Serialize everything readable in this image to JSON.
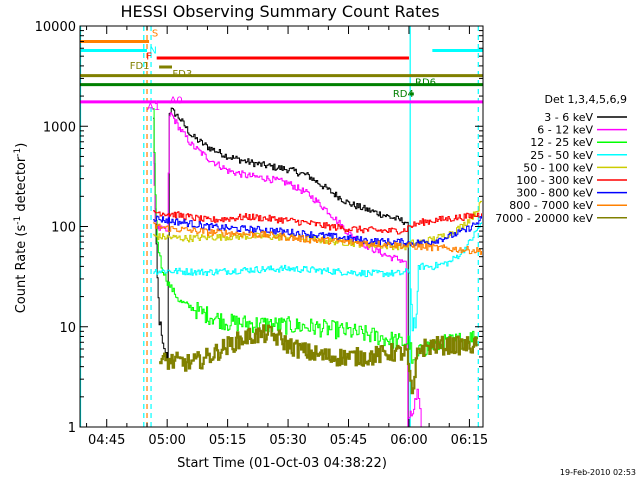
{
  "chart_data": {
    "type": "line",
    "title": "HESSI Observing Summary Count Rates",
    "xlabel": "Start Time (01-Oct-03 04:38:22)",
    "ylabel_main": "Count Rate (s",
    "ylabel_sup1": "-1",
    "ylabel_mid": " detector",
    "ylabel_sup2": "-1",
    "ylabel_end": ")",
    "footer": "19-Feb-2010 02:53",
    "y_scale": "log",
    "ylim": [
      1,
      10000
    ],
    "xlim_minutes": [
      38.37,
      138.37
    ],
    "x_ticks": [
      {
        "label": "04:45",
        "m": 45
      },
      {
        "label": "05:00",
        "m": 60
      },
      {
        "label": "05:15",
        "m": 75
      },
      {
        "label": "05:30",
        "m": 90
      },
      {
        "label": "05:45",
        "m": 105
      },
      {
        "label": "06:00",
        "m": 120
      },
      {
        "label": "06:15",
        "m": 135
      }
    ],
    "y_ticks": [
      {
        "label": "1",
        "v": 1
      },
      {
        "label": "10",
        "v": 10
      },
      {
        "label": "100",
        "v": 100
      },
      {
        "label": "1000",
        "v": 1000
      },
      {
        "label": "10000",
        "v": 10000
      }
    ],
    "legend_title": "Det 1,3,4,5,6,9",
    "series": [
      {
        "name": "3 - 6 keV",
        "color": "#000000",
        "points": [
          [
            56.5,
            1200
          ],
          [
            57,
            150
          ],
          [
            57.5,
            30
          ],
          [
            58,
            12
          ],
          [
            58.8,
            6
          ],
          [
            59.5,
            5
          ],
          [
            60,
            4.8
          ],
          [
            60.5,
            1400
          ],
          [
            61,
            1450
          ],
          [
            63,
            1200
          ],
          [
            66,
            800
          ],
          [
            70,
            620
          ],
          [
            75,
            500
          ],
          [
            80,
            440
          ],
          [
            85,
            400
          ],
          [
            90,
            370
          ],
          [
            95,
            320
          ],
          [
            100,
            230
          ],
          [
            105,
            170
          ],
          [
            110,
            145
          ],
          [
            115,
            125
          ],
          [
            119.5,
            110
          ],
          [
            119.8,
            1
          ]
        ]
      },
      {
        "name": "6 - 12 keV",
        "color": "#ff00ff",
        "points": [
          [
            56.5,
            550
          ],
          [
            57,
            120
          ],
          [
            57.5,
            100
          ],
          [
            58,
            95
          ],
          [
            59,
            92
          ],
          [
            60,
            90
          ],
          [
            60.5,
            1300
          ],
          [
            61,
            1300
          ],
          [
            63,
            950
          ],
          [
            66,
            650
          ],
          [
            70,
            480
          ],
          [
            75,
            360
          ],
          [
            80,
            320
          ],
          [
            85,
            300
          ],
          [
            90,
            270
          ],
          [
            95,
            210
          ],
          [
            100,
            140
          ],
          [
            105,
            85
          ],
          [
            110,
            62
          ],
          [
            115,
            50
          ],
          [
            119,
            45
          ],
          [
            119.7,
            1
          ],
          [
            122,
            2
          ],
          [
            123,
            1
          ]
        ]
      },
      {
        "name": "12 - 25 keV",
        "color": "#00ff00",
        "points": [
          [
            56.5,
            1500
          ],
          [
            57,
            200
          ],
          [
            57.5,
            70
          ],
          [
            58.5,
            40
          ],
          [
            60,
            28
          ],
          [
            63,
            18
          ],
          [
            68,
            14
          ],
          [
            75,
            11
          ],
          [
            85,
            10.5
          ],
          [
            95,
            10
          ],
          [
            105,
            9
          ],
          [
            112,
            8
          ],
          [
            118,
            7
          ],
          [
            120,
            7
          ],
          [
            121,
            4
          ],
          [
            123,
            6
          ],
          [
            126,
            6.5
          ],
          [
            130,
            7
          ],
          [
            134,
            7.5
          ],
          [
            137,
            8
          ]
        ]
      },
      {
        "name": "25 - 50 keV",
        "color": "#00ffff",
        "points": [
          [
            56.5,
            36
          ],
          [
            60,
            36
          ],
          [
            70,
            35
          ],
          [
            80,
            37
          ],
          [
            90,
            38
          ],
          [
            100,
            36
          ],
          [
            110,
            34
          ],
          [
            118,
            34
          ],
          [
            120,
            36
          ],
          [
            120.8,
            11
          ],
          [
            121.8,
            11
          ],
          [
            122.3,
            40
          ],
          [
            126,
            40
          ],
          [
            130,
            44
          ],
          [
            133,
            55
          ],
          [
            135,
            70
          ],
          [
            137,
            95
          ],
          [
            138,
            110
          ]
        ]
      },
      {
        "name": "50 - 100 keV",
        "color": "#cccc00",
        "points": [
          [
            56.5,
            80
          ],
          [
            60,
            78
          ],
          [
            65,
            76
          ],
          [
            70,
            78
          ],
          [
            80,
            80
          ],
          [
            90,
            78
          ],
          [
            100,
            72
          ],
          [
            110,
            66
          ],
          [
            115,
            64
          ],
          [
            119,
            63
          ],
          [
            120.5,
            68
          ],
          [
            123,
            70
          ],
          [
            126,
            75
          ],
          [
            130,
            85
          ],
          [
            133,
            100
          ],
          [
            136,
            130
          ],
          [
            138,
            175
          ]
        ]
      },
      {
        "name": "100 - 300 keV",
        "color": "#ff0000",
        "points": [
          [
            56.5,
            140
          ],
          [
            60,
            135
          ],
          [
            65,
            125
          ],
          [
            70,
            115
          ],
          [
            75,
            120
          ],
          [
            80,
            125
          ],
          [
            85,
            120
          ],
          [
            90,
            115
          ],
          [
            95,
            108
          ],
          [
            100,
            100
          ],
          [
            105,
            95
          ],
          [
            110,
            92
          ],
          [
            115,
            90
          ],
          [
            119,
            92
          ],
          [
            120,
            100
          ],
          [
            123,
            110
          ],
          [
            126,
            115
          ],
          [
            130,
            120
          ],
          [
            134,
            125
          ],
          [
            137,
            130
          ],
          [
            138,
            135
          ]
        ]
      },
      {
        "name": "300 - 800 keV",
        "color": "#0000ff",
        "points": [
          [
            56.5,
            122
          ],
          [
            60,
            115
          ],
          [
            65,
            108
          ],
          [
            70,
            100
          ],
          [
            75,
            96
          ],
          [
            80,
            94
          ],
          [
            85,
            92
          ],
          [
            90,
            88
          ],
          [
            95,
            84
          ],
          [
            100,
            80
          ],
          [
            105,
            76
          ],
          [
            110,
            72
          ],
          [
            115,
            70
          ],
          [
            118,
            70
          ],
          [
            120,
            68
          ],
          [
            125,
            70
          ],
          [
            130,
            80
          ],
          [
            134,
            92
          ],
          [
            137,
            110
          ],
          [
            138,
            120
          ]
        ]
      },
      {
        "name": "800 - 7000 keV",
        "color": "#ff8000",
        "points": [
          [
            56.5,
            102
          ],
          [
            60,
            96
          ],
          [
            65,
            92
          ],
          [
            70,
            88
          ],
          [
            75,
            86
          ],
          [
            80,
            84
          ],
          [
            85,
            82
          ],
          [
            90,
            78
          ],
          [
            95,
            74
          ],
          [
            100,
            72
          ],
          [
            105,
            70
          ],
          [
            110,
            68
          ],
          [
            115,
            66
          ],
          [
            120,
            64
          ],
          [
            125,
            62
          ],
          [
            130,
            60
          ],
          [
            135,
            58
          ],
          [
            138,
            57
          ]
        ]
      },
      {
        "name": "7000 - 20000 keV",
        "color": "#808000",
        "points": [
          [
            58,
            4.5
          ],
          [
            62,
            4.5
          ],
          [
            66,
            4.3
          ],
          [
            70,
            5
          ],
          [
            75,
            6.5
          ],
          [
            80,
            8
          ],
          [
            85,
            8.5
          ],
          [
            88,
            7.5
          ],
          [
            90,
            6.5
          ],
          [
            95,
            5.5
          ],
          [
            100,
            5
          ],
          [
            105,
            5
          ],
          [
            110,
            5
          ],
          [
            115,
            5.5
          ],
          [
            118,
            5.5
          ],
          [
            119.5,
            5.5
          ],
          [
            120,
            3
          ],
          [
            121,
            2
          ],
          [
            122,
            6
          ],
          [
            126,
            6.5
          ],
          [
            130,
            6.5
          ],
          [
            135,
            6.5
          ],
          [
            137,
            6.5
          ]
        ]
      }
    ],
    "flag_bars": [
      {
        "label": "S",
        "color": "#ff8000",
        "segments": [
          [
            38.37,
            55.5
          ]
        ],
        "v": 7000,
        "lbl_m": 56.2,
        "lbl_v": 8600
      },
      {
        "label": "N",
        "color": "#00ffff",
        "segments": [
          [
            38.37,
            55.0
          ],
          [
            125.8,
            138.37
          ]
        ],
        "v": 5700,
        "lbl_m": 55.6,
        "lbl_v": 5800
      },
      {
        "label": "F",
        "color": "#ff0000",
        "segments": [
          [
            57.4,
            120.0
          ]
        ],
        "v": 4800,
        "lbl_m": 54.8,
        "lbl_v": 5100
      },
      {
        "label": "FD1",
        "color": "#808000",
        "segments": [
          [
            58.0,
            61.2
          ]
        ],
        "v": 3900,
        "lbl_m": 50.7,
        "lbl_v": 4100
      },
      {
        "label": "FD3",
        "color": "#808000",
        "segments": [
          [
            38.37,
            138.37
          ]
        ],
        "v": 3200,
        "lbl_m": 61.3,
        "lbl_v": 3400
      },
      {
        "label": "RD6",
        "color": "#008000",
        "segments": [
          [
            38.37,
            138.37
          ]
        ],
        "v": 2600,
        "lbl_m": 121.5,
        "lbl_v": 2800
      },
      {
        "label": "RD4",
        "color": "#008000",
        "segments": [
          [
            120.2,
            121.2
          ]
        ],
        "v": 2100,
        "lbl_m": 116.0,
        "lbl_v": 2150
      },
      {
        "label": "A1",
        "color": "#ff00ff",
        "segments": [
          [
            38.37,
            57.4
          ]
        ],
        "v": 1750,
        "lbl_m": 55.0,
        "lbl_v": 1600
      },
      {
        "label": "A0",
        "color": "#ff00ff",
        "segments": [
          [
            57.4,
            138.37
          ]
        ],
        "v": 1750,
        "lbl_m": 60.6,
        "lbl_v": 1850
      }
    ],
    "vertical_lines": [
      {
        "m": 38.5,
        "color": "#00ffff",
        "dash": false
      },
      {
        "m": 54.2,
        "color": "#00ffff",
        "dash": true
      },
      {
        "m": 55.0,
        "color": "#ff8000",
        "dash": true
      },
      {
        "m": 56.0,
        "color": "#00ffff",
        "dash": true
      },
      {
        "m": 120.3,
        "color": "#00ffff",
        "dash": false
      },
      {
        "m": 137.2,
        "color": "#00ffff",
        "dash": true
      }
    ]
  }
}
